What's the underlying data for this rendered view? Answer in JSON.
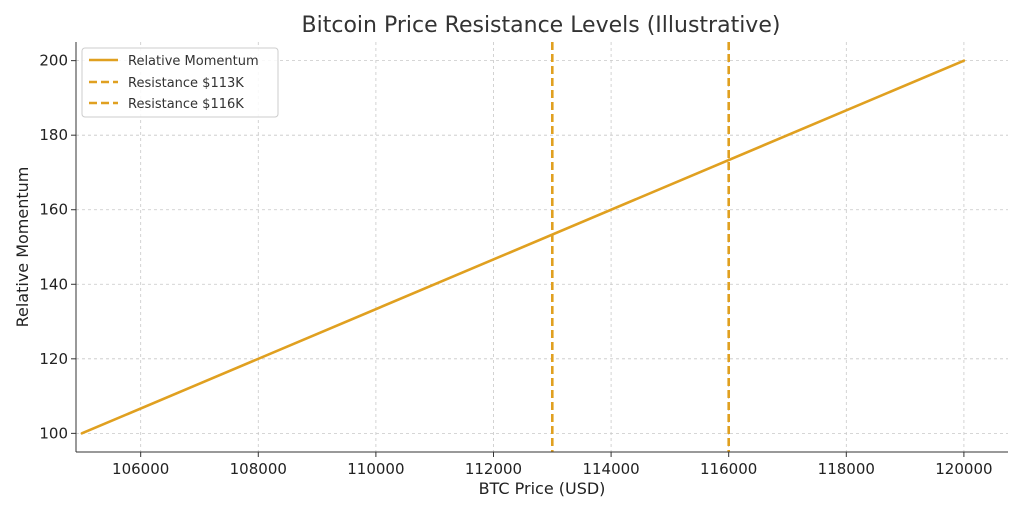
{
  "chart_data": {
    "type": "line",
    "title": "Bitcoin Price Resistance Levels (Illustrative)",
    "xlabel": "BTC Price (USD)",
    "ylabel": "Relative Momentum",
    "xlim": [
      104900,
      120750
    ],
    "ylim": [
      95,
      205
    ],
    "xticks": [
      106000,
      108000,
      110000,
      112000,
      114000,
      116000,
      118000,
      120000
    ],
    "yticks": [
      100,
      120,
      140,
      160,
      180,
      200
    ],
    "grid": true,
    "legend_position": "top-left",
    "series": [
      {
        "name": "Relative Momentum",
        "style": "solid",
        "color": "#e0a020",
        "x": [
          105000,
          120000
        ],
        "y": [
          100,
          200
        ]
      }
    ],
    "vlines": [
      {
        "name": "Resistance $113K",
        "x": 113000,
        "style": "dashed",
        "color": "#e0a020"
      },
      {
        "name": "Resistance $116K",
        "x": 116000,
        "style": "dashed",
        "color": "#e0a020"
      }
    ]
  }
}
